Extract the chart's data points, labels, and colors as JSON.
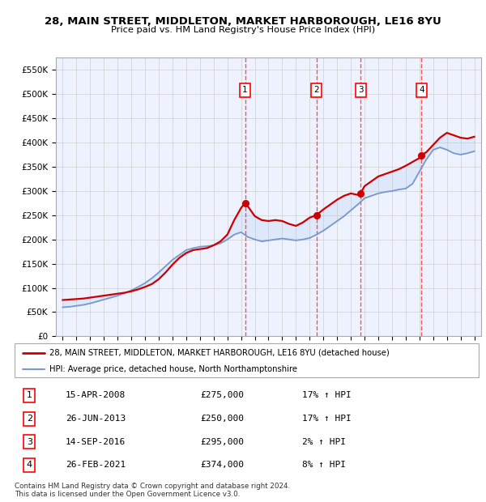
{
  "title1": "28, MAIN STREET, MIDDLETON, MARKET HARBOROUGH, LE16 8YU",
  "title2": "Price paid vs. HM Land Registry's House Price Index (HPI)",
  "legend_line1": "28, MAIN STREET, MIDDLETON, MARKET HARBOROUGH, LE16 8YU (detached house)",
  "legend_line2": "HPI: Average price, detached house, North Northamptonshire",
  "footer1": "Contains HM Land Registry data © Crown copyright and database right 2024.",
  "footer2": "This data is licensed under the Open Government Licence v3.0.",
  "sales": [
    {
      "num": 1,
      "date": "15-APR-2008",
      "price": 275000,
      "hpi_pct": "17% ↑ HPI",
      "year": 2008.29
    },
    {
      "num": 2,
      "date": "26-JUN-2013",
      "price": 250000,
      "hpi_pct": "17% ↑ HPI",
      "year": 2013.49
    },
    {
      "num": 3,
      "date": "14-SEP-2016",
      "price": 295000,
      "hpi_pct": "2% ↑ HPI",
      "year": 2016.71
    },
    {
      "num": 4,
      "date": "26-FEB-2021",
      "price": 374000,
      "hpi_pct": "8% ↑ HPI",
      "year": 2021.15
    }
  ],
  "hpi_x": [
    1995,
    1995.5,
    1996,
    1996.5,
    1997,
    1997.5,
    1998,
    1998.5,
    1999,
    1999.5,
    2000,
    2000.5,
    2001,
    2001.5,
    2002,
    2002.5,
    2003,
    2003.5,
    2004,
    2004.5,
    2005,
    2005.5,
    2006,
    2006.5,
    2007,
    2007.5,
    2008,
    2008.5,
    2009,
    2009.5,
    2010,
    2010.5,
    2011,
    2011.5,
    2012,
    2012.5,
    2013,
    2013.5,
    2014,
    2014.5,
    2015,
    2015.5,
    2016,
    2016.5,
    2017,
    2017.5,
    2018,
    2018.5,
    2019,
    2019.5,
    2020,
    2020.5,
    2021,
    2021.5,
    2022,
    2022.5,
    2023,
    2023.5,
    2024,
    2024.5,
    2025
  ],
  "hpi_y": [
    60000,
    61000,
    63000,
    65000,
    68000,
    72000,
    76000,
    80000,
    84000,
    89000,
    95000,
    102000,
    110000,
    120000,
    132000,
    145000,
    158000,
    168000,
    178000,
    182000,
    185000,
    186000,
    188000,
    192000,
    200000,
    210000,
    215000,
    205000,
    200000,
    196000,
    198000,
    200000,
    202000,
    200000,
    198000,
    200000,
    203000,
    210000,
    218000,
    228000,
    238000,
    248000,
    260000,
    272000,
    285000,
    290000,
    295000,
    298000,
    300000,
    303000,
    305000,
    315000,
    340000,
    365000,
    385000,
    390000,
    385000,
    378000,
    375000,
    378000,
    382000
  ],
  "price_x": [
    1995,
    1995.5,
    1996,
    1996.5,
    1997,
    1997.5,
    1998,
    1998.5,
    1999,
    1999.5,
    2000,
    2000.5,
    2001,
    2001.5,
    2002,
    2002.5,
    2003,
    2003.5,
    2004,
    2004.5,
    2005,
    2005.5,
    2006,
    2006.5,
    2007,
    2007.5,
    2008,
    2008.29,
    2008.5,
    2009,
    2009.5,
    2010,
    2010.5,
    2011,
    2011.5,
    2012,
    2012.5,
    2013,
    2013.49,
    2014,
    2014.5,
    2015,
    2015.5,
    2016,
    2016.5,
    2016.71,
    2017,
    2017.5,
    2018,
    2018.5,
    2019,
    2019.5,
    2020,
    2020.5,
    2021,
    2021.15,
    2021.5,
    2022,
    2022.5,
    2023,
    2023.5,
    2024,
    2024.5,
    2025
  ],
  "price_y": [
    75000,
    76000,
    77000,
    78000,
    80000,
    82000,
    84000,
    86000,
    88000,
    90000,
    93000,
    97000,
    102000,
    108000,
    118000,
    132000,
    148000,
    162000,
    172000,
    178000,
    180000,
    182000,
    188000,
    196000,
    210000,
    240000,
    265000,
    275000,
    268000,
    248000,
    240000,
    238000,
    240000,
    238000,
    232000,
    228000,
    235000,
    245000,
    250000,
    262000,
    272000,
    282000,
    290000,
    295000,
    292000,
    295000,
    310000,
    320000,
    330000,
    335000,
    340000,
    345000,
    352000,
    360000,
    368000,
    374000,
    380000,
    395000,
    410000,
    420000,
    415000,
    410000,
    408000,
    412000
  ],
  "ylim": [
    0,
    575000
  ],
  "xlim": [
    1994.5,
    2025.5
  ],
  "background_color": "#eef2ff",
  "red_color": "#cc0000",
  "blue_color": "#7799cc",
  "grid_color": "#cccccc"
}
